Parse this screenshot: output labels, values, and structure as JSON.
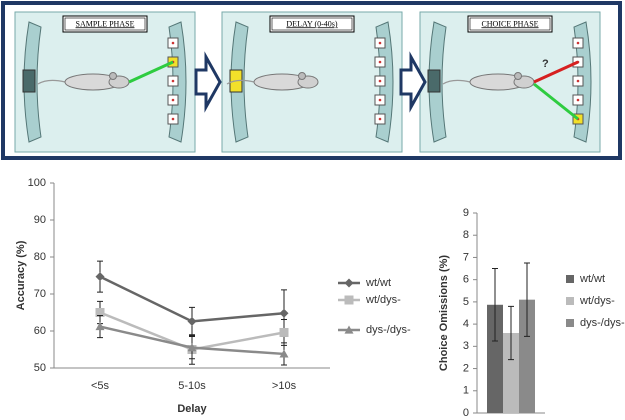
{
  "diagram": {
    "panels": [
      {
        "label": "SAMPLE PHASE"
      },
      {
        "label": "DELAY (0-40s)"
      },
      {
        "label": "CHOICE PHASE"
      }
    ],
    "question": "?"
  },
  "chart_data": [
    {
      "type": "line",
      "x_label": "Delay",
      "y_label": "Accuracy (%)",
      "categories": [
        "<5s",
        "5-10s",
        ">10s"
      ],
      "series": [
        {
          "name": "wt/wt",
          "color": "#666666",
          "marker": "diamond",
          "values": [
            74.7,
            62.6,
            64.8
          ],
          "errors": [
            4.2,
            3.8,
            6.3
          ]
        },
        {
          "name": "wt/dys-",
          "color": "#bbbbbb",
          "marker": "square",
          "values": [
            65,
            55,
            59.6
          ],
          "errors": [
            3,
            4,
            3.5
          ]
        },
        {
          "name": "dys-/dys-",
          "color": "#8a8a8a",
          "marker": "triangle",
          "values": [
            61.2,
            55.5,
            53.8
          ],
          "errors": [
            3,
            3,
            3
          ]
        }
      ],
      "ylim": [
        50,
        100
      ],
      "yticks": [
        50,
        60,
        70,
        80,
        90,
        100
      ],
      "grid": false
    },
    {
      "type": "bar",
      "y_label": "Choice Omissions (%)",
      "categories": [
        null
      ],
      "series": [
        {
          "name": "wt/wt",
          "color": "#666666",
          "values": [
            4.87
          ],
          "errors": [
            1.63
          ]
        },
        {
          "name": "wt/dys-",
          "color": "#bbbbbb",
          "values": [
            3.6
          ],
          "errors": [
            1.2
          ]
        },
        {
          "name": "dys-/dys-",
          "color": "#8a8a8a",
          "values": [
            5.1
          ],
          "errors": [
            1.65
          ]
        }
      ],
      "ylim": [
        0,
        9
      ],
      "yticks": [
        0,
        1,
        2,
        3,
        4,
        5,
        6,
        7,
        8,
        9
      ],
      "grid": false
    }
  ]
}
